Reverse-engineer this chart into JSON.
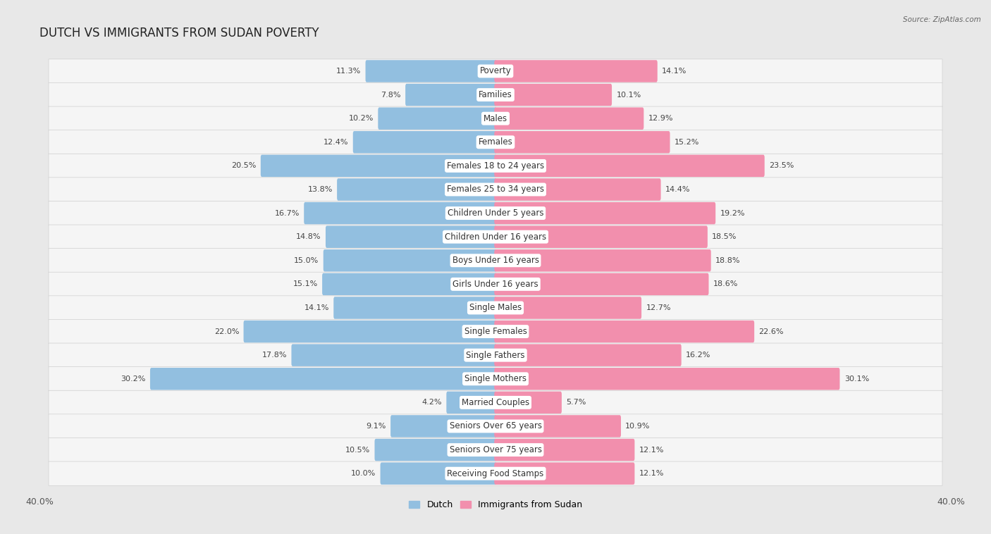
{
  "title": "DUTCH VS IMMIGRANTS FROM SUDAN POVERTY",
  "source": "Source: ZipAtlas.com",
  "categories": [
    "Poverty",
    "Families",
    "Males",
    "Females",
    "Females 18 to 24 years",
    "Females 25 to 34 years",
    "Children Under 5 years",
    "Children Under 16 years",
    "Boys Under 16 years",
    "Girls Under 16 years",
    "Single Males",
    "Single Females",
    "Single Fathers",
    "Single Mothers",
    "Married Couples",
    "Seniors Over 65 years",
    "Seniors Over 75 years",
    "Receiving Food Stamps"
  ],
  "dutch_values": [
    11.3,
    7.8,
    10.2,
    12.4,
    20.5,
    13.8,
    16.7,
    14.8,
    15.0,
    15.1,
    14.1,
    22.0,
    17.8,
    30.2,
    4.2,
    9.1,
    10.5,
    10.0
  ],
  "sudan_values": [
    14.1,
    10.1,
    12.9,
    15.2,
    23.5,
    14.4,
    19.2,
    18.5,
    18.8,
    18.6,
    12.7,
    22.6,
    16.2,
    30.1,
    5.7,
    10.9,
    12.1,
    12.1
  ],
  "dutch_color": "#92bfe0",
  "sudan_color": "#f28fad",
  "background_color": "#e8e8e8",
  "bar_background_color": "#f5f5f5",
  "row_sep_color": "#d0d0d0",
  "axis_limit": 40.0,
  "bar_height": 0.72,
  "legend_dutch": "Dutch",
  "legend_sudan": "Immigrants from Sudan",
  "title_fontsize": 12,
  "label_fontsize": 8.5,
  "value_fontsize": 8.0
}
